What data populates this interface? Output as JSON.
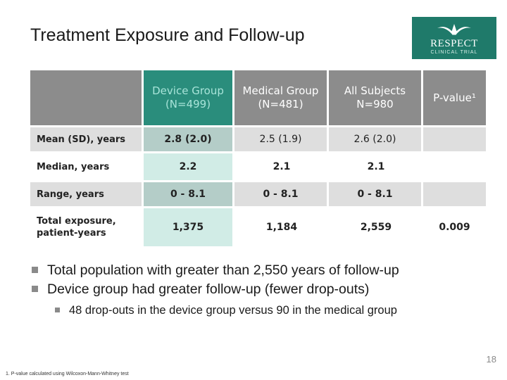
{
  "slide": {
    "title": "Treatment Exposure and Follow-up",
    "page_number": "18",
    "footnote": "1.  P-value calculated using Wilcoxon-Mann-Whitney test"
  },
  "logo": {
    "brand": "RESPECT",
    "sub": "CLINICAL TRIAL",
    "color": "#1f7a6a"
  },
  "table": {
    "columns": [
      {
        "line1": "Device Group",
        "line2": "(N=499)"
      },
      {
        "line1": "Medical Group",
        "line2": "(N=481)"
      },
      {
        "line1": "All Subjects",
        "line2": "N=980"
      },
      {
        "line1": "P-value¹",
        "line2": ""
      }
    ],
    "rows": [
      {
        "label": "Mean (SD), years",
        "values": [
          "2.8 (2.0)",
          "2.5 (1.9)",
          "2.6 (2.0)",
          ""
        ]
      },
      {
        "label": "Median, years",
        "values": [
          "2.2",
          "2.1",
          "2.1",
          ""
        ]
      },
      {
        "label": "Range, years",
        "values": [
          "0 - 8.1",
          "0 - 8.1",
          "0 - 8.1",
          ""
        ]
      },
      {
        "label": "Total exposure, patient-years",
        "values": [
          "1,375",
          "1,184",
          "2,559",
          "0.009"
        ]
      }
    ],
    "colors": {
      "header": "#8c8c8c",
      "device_header": "#2a8d7c",
      "device_header_text": "#a8e4d9",
      "shade": "#dedede",
      "device_cell": "#d1ece6",
      "device_cell_shaded": "#b4cdc8"
    }
  },
  "bullets": [
    {
      "level": 1,
      "text": "Total population with greater than 2,550 years of follow-up"
    },
    {
      "level": 1,
      "text": "Device group had greater follow-up (fewer drop-outs)"
    },
    {
      "level": 2,
      "text": "48 drop-outs in the device group versus 90 in the medical group"
    }
  ]
}
